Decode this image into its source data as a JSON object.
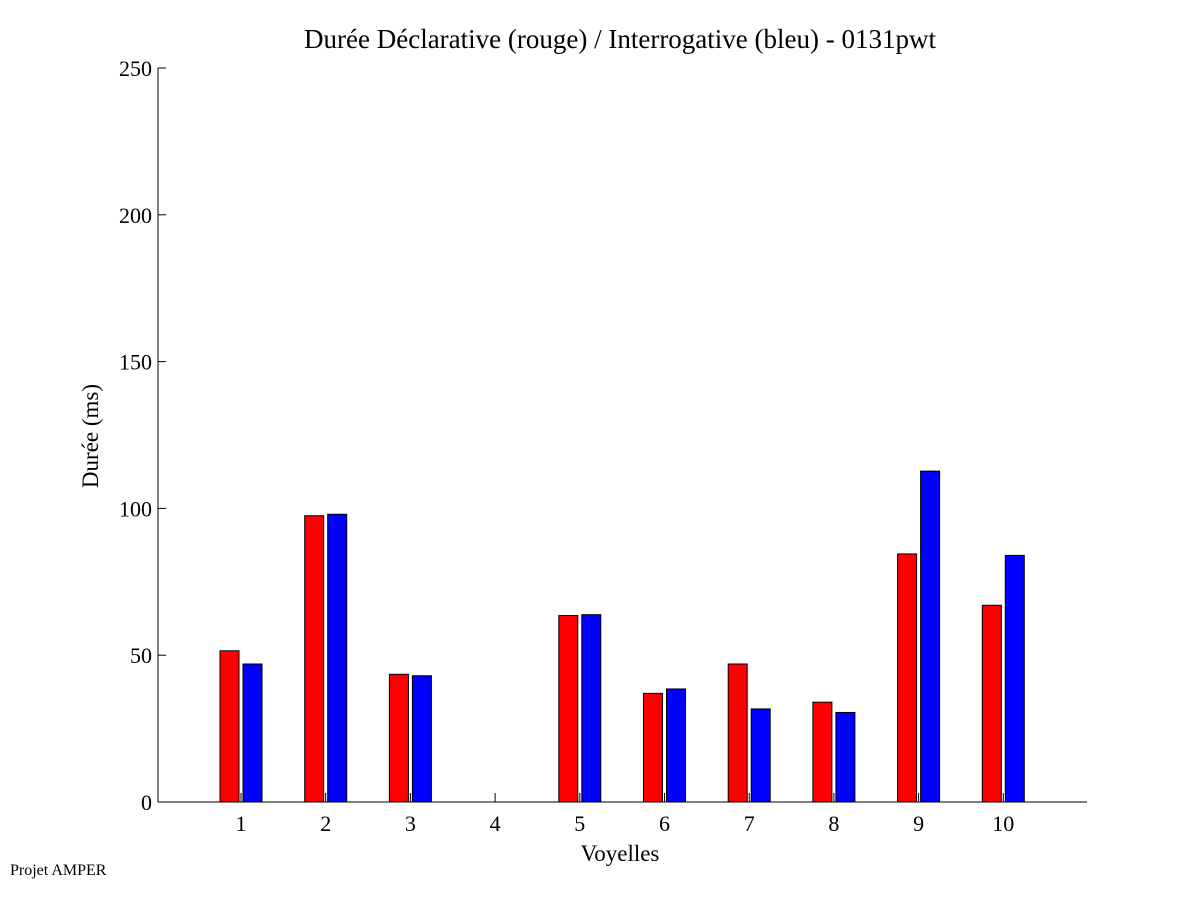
{
  "chart_data": {
    "type": "bar",
    "title": "Durée Déclarative (rouge) / Interrogative (bleu) - 0131pwt",
    "xlabel": "Voyelles",
    "ylabel": "Durée (ms)",
    "categories": [
      "1",
      "2",
      "3",
      "4",
      "5",
      "6",
      "7",
      "8",
      "9",
      "10"
    ],
    "ylim": [
      0,
      250
    ],
    "yticks": [
      "0",
      "50",
      "100",
      "150",
      "200",
      "250"
    ],
    "grid": false,
    "series": [
      {
        "values": [
          51.5,
          97.5,
          43.5,
          0,
          63.5,
          37,
          47,
          34,
          84.5,
          67
        ],
        "color": "#ff0000"
      },
      {
        "values": [
          47,
          98,
          43,
          0,
          63.8,
          38.5,
          31.7,
          30.5,
          112.7,
          84
        ],
        "color": "#0000ff"
      }
    ]
  },
  "footer": {
    "text": "Projet AMPER"
  }
}
